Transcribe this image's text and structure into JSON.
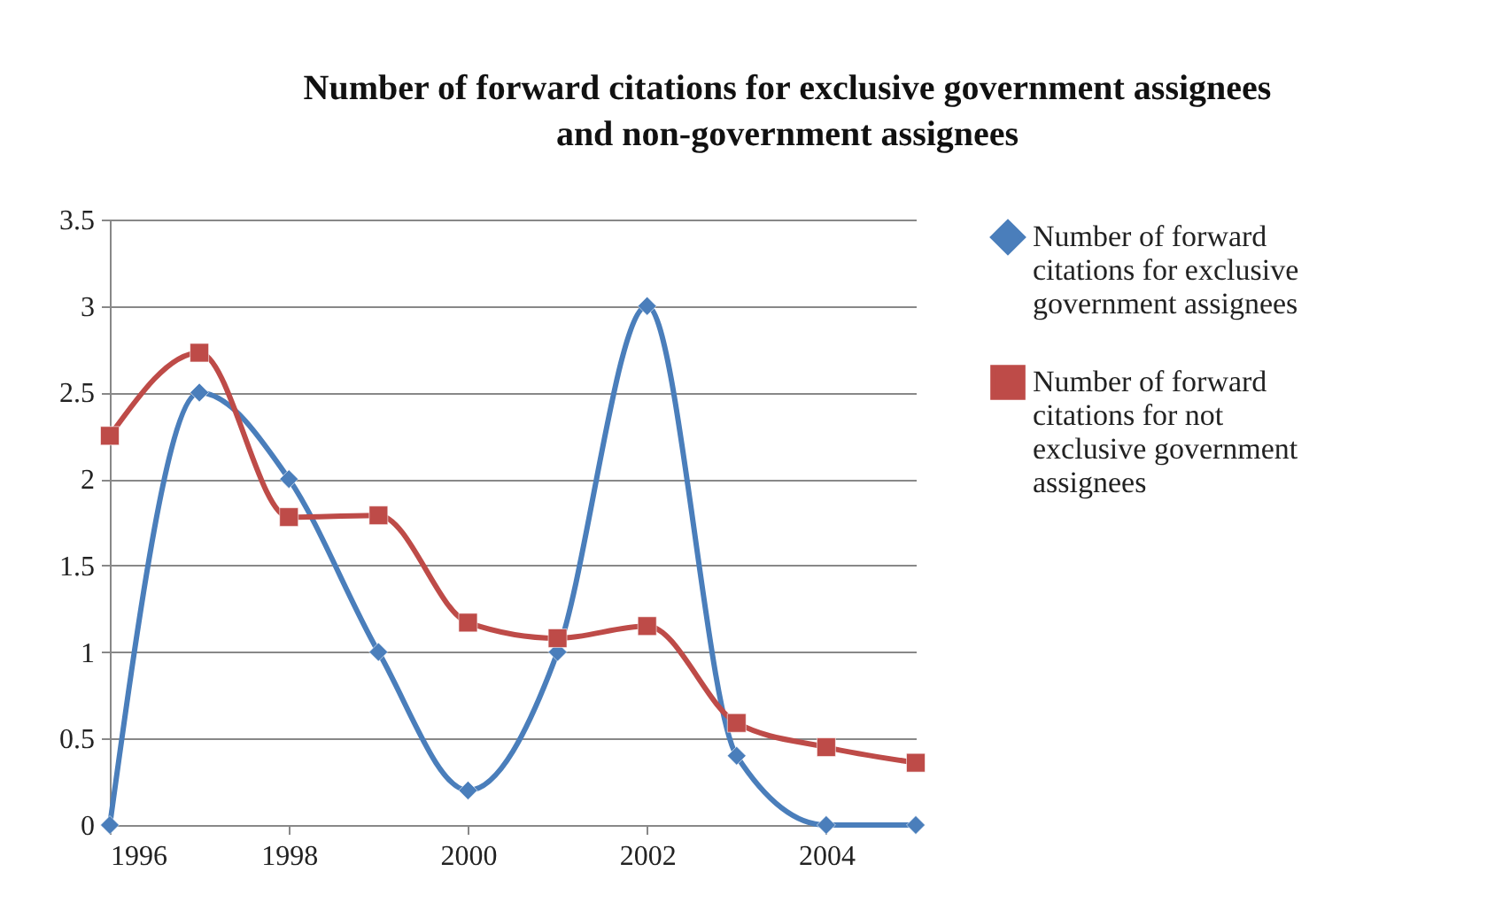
{
  "chart_data": {
    "type": "line",
    "title": "Number of forward citations for exclusive government assignees and non-government assignees",
    "x": [
      1996,
      1997,
      1998,
      1999,
      2000,
      2001,
      2002,
      2003,
      2004,
      2005
    ],
    "xlim": [
      1996,
      2005
    ],
    "xticks": [
      1996,
      1998,
      2000,
      2002,
      2004
    ],
    "ylim": [
      0,
      3.5
    ],
    "yticks": [
      0,
      0.5,
      1,
      1.5,
      2,
      2.5,
      3,
      3.5
    ],
    "grid": "y",
    "legend": "right",
    "line_style": "solid",
    "series": [
      {
        "name": "Number of forward citations for exclusive government assignees",
        "color": "#4a7ebb",
        "marker": "diamond",
        "values": [
          0,
          2.5,
          2.0,
          1.0,
          0.2,
          1.0,
          3.0,
          0.4,
          0,
          0
        ]
      },
      {
        "name": "Number of forward citations for not exclusive government assignees",
        "color": "#be4b48",
        "marker": "square",
        "values": [
          2.25,
          2.73,
          1.78,
          1.79,
          1.17,
          1.08,
          1.15,
          0.59,
          0.45,
          0.36
        ]
      }
    ]
  }
}
